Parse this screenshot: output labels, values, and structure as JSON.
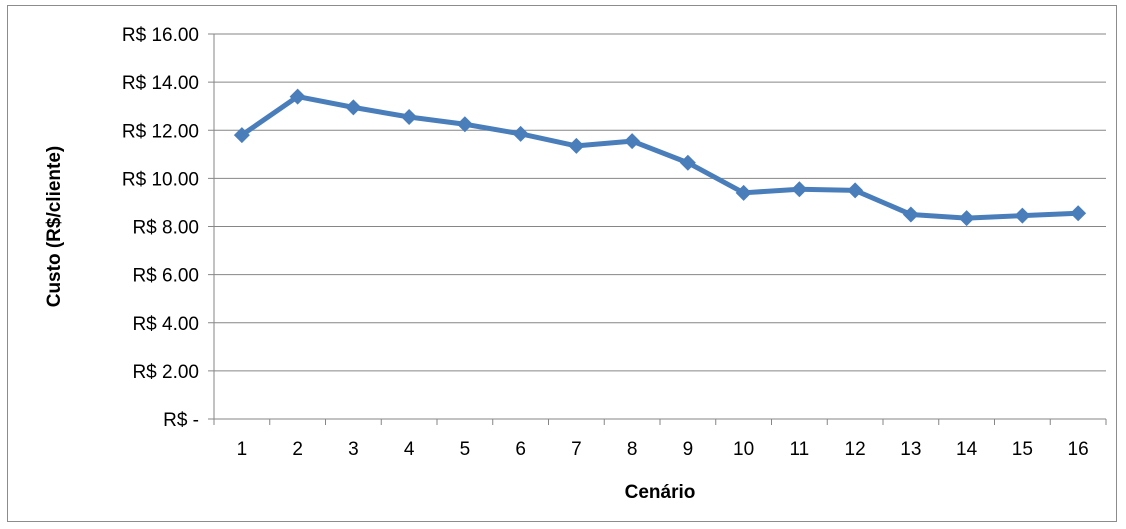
{
  "chart_data": {
    "type": "line",
    "title": "",
    "xlabel": "Cenário",
    "ylabel": "Custo (R$/cliente)",
    "categories": [
      "1",
      "2",
      "3",
      "4",
      "5",
      "6",
      "7",
      "8",
      "9",
      "10",
      "11",
      "12",
      "13",
      "14",
      "15",
      "16"
    ],
    "series": [
      {
        "values": [
          11.8,
          13.4,
          12.95,
          12.55,
          12.25,
          11.85,
          11.35,
          11.55,
          10.65,
          9.4,
          9.55,
          9.5,
          8.5,
          8.35,
          8.45,
          8.55
        ]
      }
    ],
    "ylim": [
      0,
      16
    ],
    "y_ticks": [
      0,
      2,
      4,
      6,
      8,
      10,
      12,
      14,
      16
    ],
    "y_tick_labels": [
      "R$ -",
      "R$ 2.00",
      "R$ 4.00",
      "R$ 6.00",
      "R$ 8.00",
      "R$ 10.00",
      "R$ 12.00",
      "R$ 14.00",
      "R$ 16.00"
    ],
    "grid": true,
    "legend": "none",
    "colors": {
      "series": "#4a7ebb",
      "grid": "#868686",
      "axis": "#868686"
    }
  }
}
